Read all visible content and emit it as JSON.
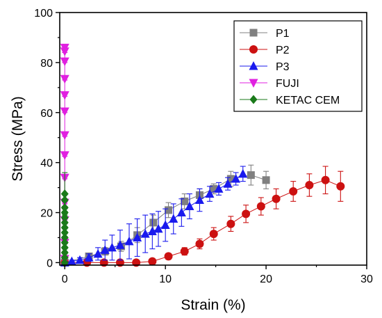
{
  "chart_data": {
    "type": "scatter",
    "xlabel": "Strain (%)",
    "ylabel": "Stress (MPa)",
    "xlim": [
      -0.5,
      30
    ],
    "ylim": [
      -1,
      100
    ],
    "xticks": [
      0,
      10,
      20,
      30
    ],
    "yticks": [
      0,
      20,
      40,
      60,
      80,
      100
    ],
    "grid": false,
    "legend_position": "top-right",
    "series": [
      {
        "name": "P1",
        "marker": "square",
        "color": "#808080",
        "x": [
          0.0,
          2.4,
          4.0,
          5.6,
          7.2,
          8.8,
          10.3,
          11.9,
          13.4,
          14.8,
          16.5,
          18.5,
          20.0
        ],
        "y": [
          0.0,
          2.5,
          4.5,
          6.5,
          11.0,
          16.0,
          21.0,
          24.5,
          27.0,
          29.5,
          33.5,
          35.0,
          33.0
        ],
        "err": [
          0.5,
          1.0,
          1.5,
          2.0,
          3.0,
          3.0,
          3.0,
          3.0,
          2.5,
          2.0,
          3.0,
          4.0,
          3.5
        ]
      },
      {
        "name": "P2",
        "marker": "circle",
        "color": "#cc1111",
        "x": [
          0.0,
          2.2,
          3.9,
          5.5,
          7.1,
          8.7,
          10.3,
          11.9,
          13.4,
          14.8,
          16.5,
          18.0,
          19.5,
          21.0,
          22.7,
          24.3,
          25.9,
          27.4
        ],
        "y": [
          0.0,
          0.0,
          0.0,
          0.0,
          0.0,
          0.5,
          2.5,
          4.5,
          7.5,
          11.5,
          15.5,
          19.5,
          22.5,
          25.5,
          28.5,
          31.0,
          33.0,
          30.5
        ],
        "err": [
          0.3,
          0.3,
          0.3,
          0.3,
          0.5,
          0.8,
          1.2,
          1.5,
          2.0,
          2.5,
          3.0,
          3.5,
          3.5,
          4.0,
          4.0,
          4.5,
          5.5,
          6.0
        ]
      },
      {
        "name": "P3",
        "marker": "triangle-up",
        "color": "#1a1aee",
        "x": [
          0.0,
          0.7,
          1.5,
          2.4,
          3.3,
          4.0,
          4.7,
          5.5,
          6.4,
          7.2,
          8.0,
          8.7,
          9.3,
          10.0,
          10.8,
          11.6,
          12.4,
          13.4,
          14.4,
          15.3,
          16.2,
          17.0,
          17.7
        ],
        "y": [
          0.0,
          0.5,
          1.0,
          2.0,
          3.5,
          5.0,
          6.0,
          7.0,
          8.5,
          10.0,
          11.5,
          12.5,
          13.5,
          15.0,
          17.5,
          20.0,
          22.5,
          25.0,
          27.5,
          29.5,
          31.5,
          33.5,
          35.5
        ],
        "err": [
          0.3,
          0.5,
          1.0,
          1.5,
          2.5,
          4.0,
          5.0,
          6.0,
          7.0,
          7.5,
          7.5,
          7.0,
          7.0,
          6.5,
          6.0,
          5.5,
          5.0,
          4.5,
          3.0,
          2.5,
          2.5,
          2.5,
          3.0
        ]
      },
      {
        "name": "FUJI",
        "marker": "triangle-down",
        "color": "#e020e0",
        "x": [
          0,
          0,
          0,
          0,
          0,
          0,
          0,
          0,
          0,
          0,
          0,
          0,
          0
        ],
        "y": [
          1.5,
          8.0,
          17.0,
          24.0,
          34.0,
          43.0,
          51.0,
          60.5,
          67.0,
          73.5,
          80.5,
          84.5,
          86.0
        ],
        "err": [
          0.5,
          0.5,
          0.5,
          0.5,
          0.5,
          0.5,
          0.5,
          0.5,
          0.5,
          0.5,
          0.5,
          0.5,
          0.5
        ]
      },
      {
        "name": "KETAC CEM",
        "marker": "diamond",
        "color": "#1a7a1a",
        "x": [
          0,
          0,
          0,
          0,
          0,
          0,
          0,
          0,
          0,
          0,
          0,
          0,
          0,
          0
        ],
        "y": [
          0.0,
          2.0,
          4.0,
          6.0,
          8.0,
          10.0,
          12.0,
          14.0,
          16.0,
          18.0,
          20.0,
          22.0,
          25.0,
          27.5
        ],
        "err": [
          0.5,
          0.5,
          0.5,
          0.5,
          0.5,
          0.5,
          0.5,
          0.5,
          0.5,
          0.5,
          0.5,
          0.5,
          0.5,
          8.5
        ]
      }
    ]
  }
}
